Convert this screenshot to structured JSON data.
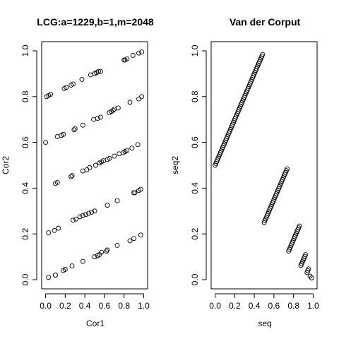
{
  "chart_data": [
    {
      "type": "scatter",
      "title": "LCG:a=1229,b=1,m=2048",
      "xlabel": "Cor1",
      "ylabel": "Cor2",
      "xlim": [
        -0.04,
        1.04
      ],
      "ylim": [
        -0.04,
        1.04
      ],
      "xticks": [
        0.0,
        0.2,
        0.4,
        0.6,
        0.8,
        1.0
      ],
      "yticks": [
        0.0,
        0.2,
        0.4,
        0.6,
        0.8,
        1.0
      ],
      "xtick_labels": [
        "0.0",
        "0.2",
        "0.4",
        "0.6",
        "0.8",
        "1.0"
      ],
      "ytick_labels": [
        "0.0",
        "0.2",
        "0.4",
        "0.6",
        "0.8",
        "1.0"
      ],
      "marker": "open-circle",
      "points": [
        [
          0.03,
          0.01
        ],
        [
          0.1,
          0.02
        ],
        [
          0.1,
          0.02
        ],
        [
          0.18,
          0.04
        ],
        [
          0.2,
          0.045
        ],
        [
          0.27,
          0.06
        ],
        [
          0.38,
          0.08
        ],
        [
          0.5,
          0.1
        ],
        [
          0.53,
          0.105
        ],
        [
          0.55,
          0.11
        ],
        [
          0.57,
          0.12
        ],
        [
          0.62,
          0.125
        ],
        [
          0.63,
          0.13
        ],
        [
          0.73,
          0.15
        ],
        [
          0.86,
          0.17
        ],
        [
          0.9,
          0.18
        ],
        [
          0.97,
          0.195
        ],
        [
          0.03,
          0.205
        ],
        [
          0.09,
          0.215
        ],
        [
          0.13,
          0.225
        ],
        [
          0.28,
          0.26
        ],
        [
          0.31,
          0.265
        ],
        [
          0.35,
          0.275
        ],
        [
          0.38,
          0.28
        ],
        [
          0.41,
          0.285
        ],
        [
          0.44,
          0.29
        ],
        [
          0.47,
          0.295
        ],
        [
          0.5,
          0.3
        ],
        [
          0.63,
          0.325
        ],
        [
          0.73,
          0.345
        ],
        [
          0.9,
          0.38
        ],
        [
          0.91,
          0.38
        ],
        [
          0.95,
          0.39
        ],
        [
          0.97,
          0.395
        ],
        [
          0.1,
          0.42
        ],
        [
          0.12,
          0.425
        ],
        [
          0.26,
          0.45
        ],
        [
          0.27,
          0.455
        ],
        [
          0.38,
          0.475
        ],
        [
          0.42,
          0.48
        ],
        [
          0.45,
          0.49
        ],
        [
          0.51,
          0.5
        ],
        [
          0.55,
          0.51
        ],
        [
          0.57,
          0.515
        ],
        [
          0.59,
          0.52
        ],
        [
          0.63,
          0.525
        ],
        [
          0.65,
          0.53
        ],
        [
          0.7,
          0.54
        ],
        [
          0.75,
          0.55
        ],
        [
          0.79,
          0.555
        ],
        [
          0.81,
          0.56
        ],
        [
          0.83,
          0.565
        ],
        [
          0.88,
          0.575
        ],
        [
          0.94,
          0.59
        ],
        [
          0.0,
          0.6
        ],
        [
          0.12,
          0.625
        ],
        [
          0.16,
          0.63
        ],
        [
          0.18,
          0.635
        ],
        [
          0.29,
          0.655
        ],
        [
          0.3,
          0.66
        ],
        [
          0.38,
          0.675
        ],
        [
          0.49,
          0.7
        ],
        [
          0.53,
          0.705
        ],
        [
          0.56,
          0.71
        ],
        [
          0.65,
          0.73
        ],
        [
          0.67,
          0.735
        ],
        [
          0.69,
          0.74
        ],
        [
          0.7,
          0.745
        ],
        [
          0.74,
          0.75
        ],
        [
          0.86,
          0.775
        ],
        [
          0.95,
          0.79
        ],
        [
          0.98,
          0.8
        ],
        [
          0.01,
          0.8
        ],
        [
          0.03,
          0.805
        ],
        [
          0.05,
          0.81
        ],
        [
          0.19,
          0.835
        ],
        [
          0.21,
          0.84
        ],
        [
          0.26,
          0.85
        ],
        [
          0.28,
          0.855
        ],
        [
          0.37,
          0.875
        ],
        [
          0.46,
          0.895
        ],
        [
          0.5,
          0.9
        ],
        [
          0.52,
          0.905
        ],
        [
          0.54,
          0.91
        ],
        [
          0.56,
          0.91
        ],
        [
          0.8,
          0.96
        ],
        [
          0.81,
          0.96
        ],
        [
          0.83,
          0.965
        ],
        [
          0.89,
          0.98
        ],
        [
          0.95,
          0.99
        ],
        [
          0.98,
          0.995
        ]
      ]
    },
    {
      "type": "scatter",
      "title": "Van der Corput",
      "xlabel": "seq",
      "ylabel": "seq2",
      "xlim": [
        -0.04,
        1.04
      ],
      "ylim": [
        -0.04,
        1.04
      ],
      "xticks": [
        0.0,
        0.2,
        0.4,
        0.6,
        0.8,
        1.0
      ],
      "yticks": [
        0.0,
        0.2,
        0.4,
        0.6,
        0.8,
        1.0
      ],
      "xtick_labels": [
        "0.0",
        "0.2",
        "0.4",
        "0.6",
        "0.8",
        "1.0"
      ],
      "ytick_labels": [
        "0.0",
        "0.2",
        "0.4",
        "0.6",
        "0.8",
        "1.0"
      ],
      "marker": "open-circle",
      "segments": [
        {
          "x_start": 0.0,
          "x_end": 0.4844,
          "y_start": 0.5,
          "y_end": 0.9844,
          "step": 0.0078125
        },
        {
          "x_start": 0.5,
          "x_end": 0.7344,
          "y_start": 0.25,
          "y_end": 0.4844,
          "step": 0.0078125
        },
        {
          "x_start": 0.75,
          "x_end": 0.8594,
          "y_start": 0.125,
          "y_end": 0.2344,
          "step": 0.0078125
        },
        {
          "x_start": 0.875,
          "x_end": 0.9219,
          "y_start": 0.0625,
          "y_end": 0.1094,
          "step": 0.0078125
        },
        {
          "x_start": 0.9375,
          "x_end": 0.9531,
          "y_start": 0.03125,
          "y_end": 0.0469,
          "step": 0.0078125
        },
        {
          "x_start": 0.96875,
          "x_end": 0.96875,
          "y_start": 0.015625,
          "y_end": 0.015625,
          "step": 0.0078125
        },
        {
          "x_start": 0.984375,
          "x_end": 0.984375,
          "y_start": 0.0078125,
          "y_end": 0.0078125,
          "step": 0.0078125
        }
      ]
    }
  ]
}
